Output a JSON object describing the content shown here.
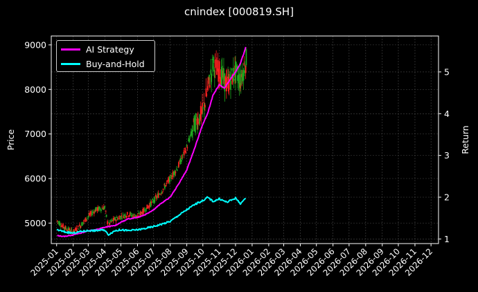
{
  "chart_data": {
    "type": "line",
    "title": "cnindex [000819.SH]",
    "ylabel_left": "Price",
    "ylabel_right": "Return",
    "x_ticks": [
      "2025-01",
      "2025-02",
      "2025-03",
      "2025-04",
      "2025-05",
      "2025-06",
      "2025-07",
      "2025-08",
      "2025-09",
      "2025-10",
      "2025-11",
      "2025-12",
      "2026-01",
      "2026-02",
      "2026-03",
      "2026-04",
      "2026-05",
      "2026-06",
      "2026-07",
      "2026-08",
      "2026-09",
      "2026-10",
      "2026-11",
      "2026-12"
    ],
    "xlim": [
      "2024-12-22",
      "2026-12-15"
    ],
    "left_ylim": [
      4540,
      9200
    ],
    "left_yticks": [
      5000,
      6000,
      7000,
      8000,
      9000
    ],
    "right_ylim": [
      0.89,
      5.86
    ],
    "right_yticks": [
      1,
      2,
      3,
      4,
      5
    ],
    "grid": true,
    "legend_position": "top-left",
    "colors": {
      "ai_strategy": "#ff00ff",
      "buy_and_hold": "#00ffff",
      "candle_up": "#ff2020",
      "candle_down": "#1fa81f",
      "background": "#000000",
      "grid": "#4a4a4a",
      "text": "#ffffff"
    },
    "series": [
      {
        "name": "AI Strategy",
        "axis": "right",
        "points": [
          [
            "2025-01-02",
            1.08
          ],
          [
            "2025-01-15",
            1.06
          ],
          [
            "2025-02-01",
            1.1
          ],
          [
            "2025-02-15",
            1.14
          ],
          [
            "2025-03-01",
            1.2
          ],
          [
            "2025-03-15",
            1.22
          ],
          [
            "2025-04-01",
            1.28
          ],
          [
            "2025-04-10",
            1.3
          ],
          [
            "2025-04-20",
            1.32
          ],
          [
            "2025-05-01",
            1.4
          ],
          [
            "2025-05-15",
            1.48
          ],
          [
            "2025-06-01",
            1.52
          ],
          [
            "2025-06-15",
            1.58
          ],
          [
            "2025-07-01",
            1.7
          ],
          [
            "2025-07-15",
            1.85
          ],
          [
            "2025-08-01",
            2.0
          ],
          [
            "2025-08-15",
            2.28
          ],
          [
            "2025-09-01",
            2.65
          ],
          [
            "2025-09-15",
            3.15
          ],
          [
            "2025-10-01",
            3.75
          ],
          [
            "2025-10-10",
            4.0
          ],
          [
            "2025-10-20",
            4.45
          ],
          [
            "2025-11-01",
            4.7
          ],
          [
            "2025-11-10",
            4.6
          ],
          [
            "2025-11-20",
            4.8
          ],
          [
            "2025-12-01",
            5.0
          ],
          [
            "2025-12-10",
            5.2
          ],
          [
            "2025-12-18",
            5.5
          ],
          [
            "2025-12-22",
            5.68
          ]
        ]
      },
      {
        "name": "Buy-and-Hold",
        "axis": "right",
        "points": [
          [
            "2025-01-02",
            1.22
          ],
          [
            "2025-01-15",
            1.17
          ],
          [
            "2025-02-01",
            1.14
          ],
          [
            "2025-02-15",
            1.18
          ],
          [
            "2025-03-01",
            1.2
          ],
          [
            "2025-03-15",
            1.2
          ],
          [
            "2025-04-01",
            1.22
          ],
          [
            "2025-04-07",
            1.1
          ],
          [
            "2025-04-20",
            1.2
          ],
          [
            "2025-05-01",
            1.22
          ],
          [
            "2025-05-15",
            1.2
          ],
          [
            "2025-06-01",
            1.22
          ],
          [
            "2025-06-15",
            1.25
          ],
          [
            "2025-07-01",
            1.3
          ],
          [
            "2025-07-15",
            1.35
          ],
          [
            "2025-08-01",
            1.42
          ],
          [
            "2025-08-15",
            1.55
          ],
          [
            "2025-09-01",
            1.7
          ],
          [
            "2025-09-15",
            1.82
          ],
          [
            "2025-10-01",
            1.92
          ],
          [
            "2025-10-10",
            2.0
          ],
          [
            "2025-10-20",
            1.9
          ],
          [
            "2025-11-01",
            1.96
          ],
          [
            "2025-11-15",
            1.88
          ],
          [
            "2025-12-01",
            1.98
          ],
          [
            "2025-12-10",
            1.85
          ],
          [
            "2025-12-22",
            1.98
          ]
        ]
      },
      {
        "name": "cnindex [000819.SH]",
        "axis": "left",
        "points": [
          [
            "2025-01-02",
            5050
          ],
          [
            "2025-01-15",
            4900
          ],
          [
            "2025-02-01",
            4800
          ],
          [
            "2025-02-15",
            4950
          ],
          [
            "2025-03-01",
            5150
          ],
          [
            "2025-03-15",
            5300
          ],
          [
            "2025-04-01",
            5350
          ],
          [
            "2025-04-07",
            4950
          ],
          [
            "2025-04-15",
            5050
          ],
          [
            "2025-05-01",
            5150
          ],
          [
            "2025-05-15",
            5200
          ],
          [
            "2025-06-01",
            5150
          ],
          [
            "2025-06-15",
            5300
          ],
          [
            "2025-07-01",
            5500
          ],
          [
            "2025-07-15",
            5700
          ],
          [
            "2025-08-01",
            6000
          ],
          [
            "2025-08-15",
            6250
          ],
          [
            "2025-09-01",
            6700
          ],
          [
            "2025-09-15",
            7200
          ],
          [
            "2025-10-01",
            7500
          ],
          [
            "2025-10-10",
            8000
          ],
          [
            "2025-10-20",
            8550
          ],
          [
            "2025-11-01",
            8400
          ],
          [
            "2025-11-15",
            8100
          ],
          [
            "2025-12-01",
            8400
          ],
          [
            "2025-12-10",
            8200
          ],
          [
            "2025-12-22",
            8700
          ]
        ]
      }
    ]
  }
}
